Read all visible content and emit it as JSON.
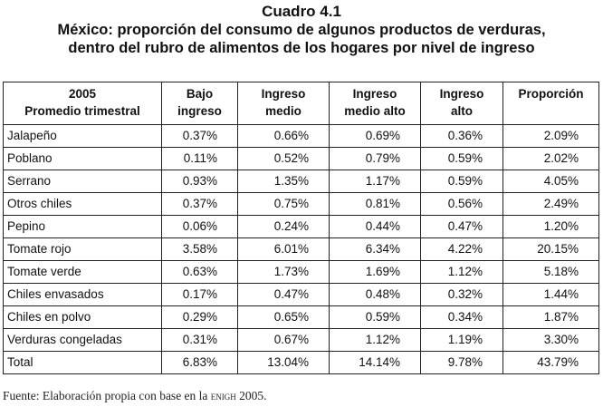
{
  "title": "Cuadro 4.1",
  "subtitle_lines": [
    "México: proporción del consumo de algunos productos de verduras,",
    "dentro del rubro de alimentos de los hogares por nivel de ingreso"
  ],
  "headers": [
    [
      "2005",
      "Promedio trimestral"
    ],
    [
      "Bajo",
      "ingreso"
    ],
    [
      "Ingreso",
      "medio"
    ],
    [
      "Ingreso",
      "medio alto"
    ],
    [
      "Ingreso",
      "alto"
    ],
    [
      "Proporción",
      ""
    ]
  ],
  "rows": [
    {
      "label": "Jalapeño",
      "values": [
        "0.37%",
        "0.66%",
        "0.69%",
        "0.36%",
        "2.09%"
      ]
    },
    {
      "label": "Poblano",
      "values": [
        "0.11%",
        "0.52%",
        "0.79%",
        "0.59%",
        "2.02%"
      ]
    },
    {
      "label": "Serrano",
      "values": [
        "0.93%",
        "1.35%",
        "1.17%",
        "0.59%",
        "4.05%"
      ]
    },
    {
      "label": "Otros chiles",
      "values": [
        "0.37%",
        "0.75%",
        "0.81%",
        "0.56%",
        "2.49%"
      ]
    },
    {
      "label": "Pepino",
      "values": [
        "0.06%",
        "0.24%",
        "0.44%",
        "0.47%",
        "1.20%"
      ]
    },
    {
      "label": "Tomate rojo",
      "values": [
        "3.58%",
        "6.01%",
        "6.34%",
        "4.22%",
        "20.15%"
      ]
    },
    {
      "label": "Tomate verde",
      "values": [
        "0.63%",
        "1.73%",
        "1.69%",
        "1.12%",
        "5.18%"
      ]
    },
    {
      "label": "Chiles envasados",
      "values": [
        "0.17%",
        "0.47%",
        "0.48%",
        "0.32%",
        "1.44%"
      ]
    },
    {
      "label": "Chiles en polvo",
      "values": [
        "0.29%",
        "0.65%",
        "0.59%",
        "0.34%",
        "1.87%"
      ]
    },
    {
      "label": "Verduras congeladas",
      "values": [
        "0.31%",
        "0.67%",
        "1.12%",
        "1.19%",
        "3.30%"
      ]
    },
    {
      "label": "Total",
      "values": [
        "6.83%",
        "13.04%",
        "14.14%",
        "9.78%",
        "43.79%"
      ]
    }
  ],
  "source": {
    "prefix": "Fuente: Elaboración propia con base en la ",
    "acronym": "enigh",
    "suffix": " 2005."
  }
}
